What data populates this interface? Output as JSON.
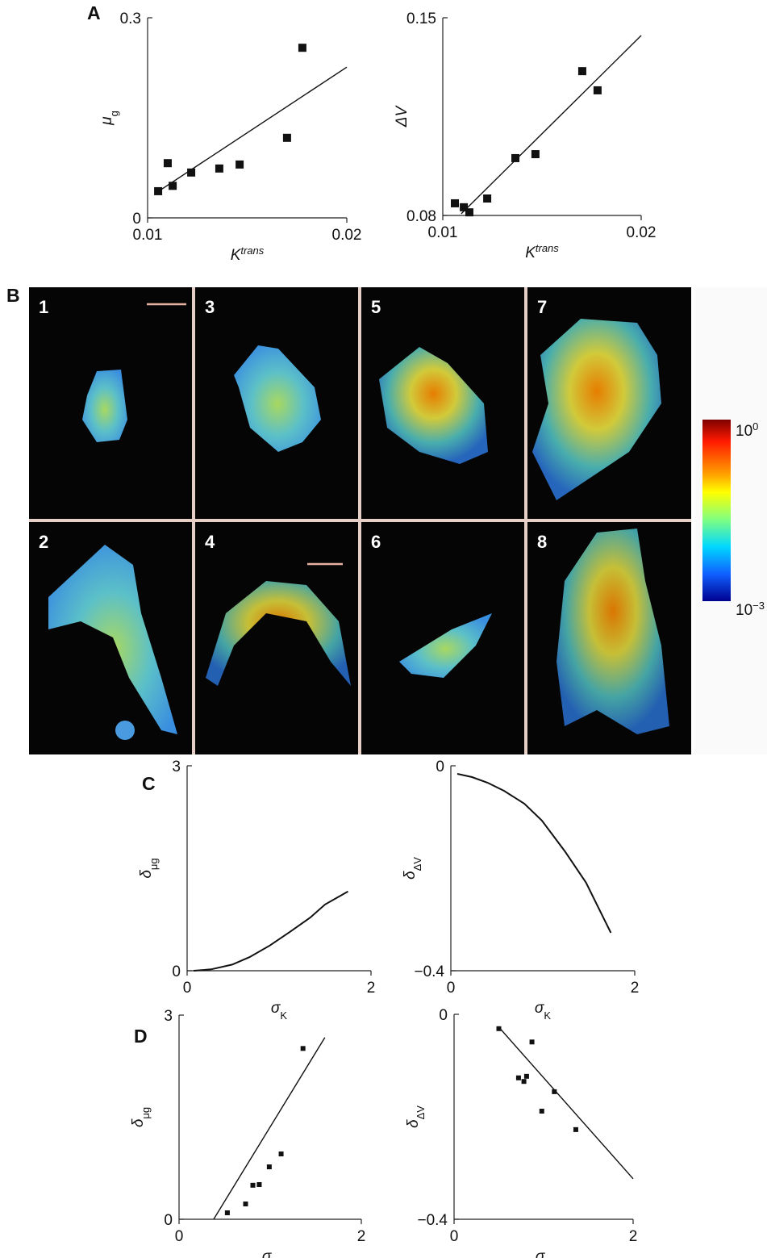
{
  "chart_data": [
    {
      "type": "scatter",
      "panel_label": "A",
      "x": [
        0.01053,
        0.01101,
        0.01126,
        0.01219,
        0.0136,
        0.01462,
        0.017,
        0.01777
      ],
      "values": [
        0.04,
        0.082,
        0.048,
        0.068,
        0.074,
        0.08,
        0.12,
        0.255
      ],
      "fit": {
        "x": [
          0.0105,
          0.02
        ],
        "values": [
          0.039,
          0.226
        ]
      },
      "xlim": [
        0.01,
        0.02
      ],
      "xticks": [
        0.01,
        0.02
      ],
      "ylim": [
        0,
        0.3
      ],
      "yticks": [
        0,
        0.3
      ],
      "xlabel": {
        "main": "K",
        "sup": "trans"
      },
      "ylabel": {
        "main": "μ",
        "sub": "g"
      },
      "color": "#111111"
    },
    {
      "type": "scatter",
      "x": [
        0.01061,
        0.01106,
        0.01134,
        0.01224,
        0.01366,
        0.01467,
        0.01703,
        0.0178
      ],
      "values": [
        0.0843,
        0.0829,
        0.0811,
        0.086,
        0.1003,
        0.1017,
        0.1311,
        0.1243
      ],
      "fit": {
        "x": [
          0.01093,
          0.02
        ],
        "values": [
          0.0806,
          0.1437
        ]
      },
      "xlim": [
        0.01,
        0.02
      ],
      "xticks": [
        0.01,
        0.02
      ],
      "ylim": [
        0.08,
        0.15
      ],
      "yticks": [
        0.08,
        0.15
      ],
      "xlabel": {
        "main": "K",
        "sup": "trans"
      },
      "ylabel": {
        "main": "ΔV"
      },
      "color": "#111111"
    },
    {
      "type": "line",
      "panel_label": "C",
      "x": [
        0.07,
        0.26,
        0.49,
        0.68,
        0.9,
        1.12,
        1.34,
        1.5,
        1.75
      ],
      "values": [
        0,
        0.02,
        0.09,
        0.2,
        0.37,
        0.57,
        0.78,
        0.97,
        1.16
      ],
      "xlim": [
        0,
        2
      ],
      "xticks": [
        0,
        2
      ],
      "ylim": [
        0,
        3
      ],
      "yticks": [
        0,
        3
      ],
      "xlabel": {
        "main": "σ",
        "sub": "K"
      },
      "ylabel": {
        "main": "δ",
        "sub": "μg"
      },
      "color": "#111111"
    },
    {
      "type": "line",
      "x": [
        0.07,
        0.23,
        0.4,
        0.58,
        0.8,
        0.99,
        1.24,
        1.47,
        1.74
      ],
      "values": [
        -0.0157,
        -0.022,
        -0.033,
        -0.049,
        -0.074,
        -0.107,
        -0.167,
        -0.228,
        -0.326
      ],
      "xlim": [
        0,
        2
      ],
      "xticks": [
        0,
        2
      ],
      "ylim": [
        -0.4,
        0
      ],
      "yticks": [
        {
          "value": -0.4,
          "label": "−0.4"
        },
        0
      ],
      "xlabel": {
        "main": "σ",
        "sub": "K"
      },
      "ylabel": {
        "main": "δ",
        "sub": "ΔV"
      },
      "color": "#111111"
    },
    {
      "type": "scatter",
      "panel_label": "D",
      "x": [
        0.53,
        0.73,
        0.81,
        0.88,
        0.99,
        1.12,
        1.36
      ],
      "values": [
        0.095,
        0.225,
        0.5,
        0.51,
        0.77,
        0.96,
        2.51
      ],
      "fit": {
        "x": [
          0.38,
          1.6
        ],
        "values": [
          0,
          2.67
        ]
      },
      "xlim": [
        0,
        2
      ],
      "xticks": [
        0,
        2
      ],
      "ylim": [
        0,
        3
      ],
      "yticks": [
        0,
        3
      ],
      "xlabel": {
        "main": "σ",
        "sub": "K"
      },
      "ylabel": {
        "main": "δ",
        "sub": "μg"
      },
      "color": "#111111"
    },
    {
      "type": "scatter",
      "x": [
        0.5,
        0.72,
        0.78,
        0.81,
        0.87,
        0.98,
        1.12,
        1.36
      ],
      "values": [
        -0.028,
        -0.124,
        -0.131,
        -0.121,
        -0.054,
        -0.189,
        -0.151,
        -0.225
      ],
      "fit": {
        "x": [
          0.5,
          2
        ],
        "values": [
          -0.025,
          -0.321
        ]
      },
      "xlim": [
        0,
        2
      ],
      "xticks": [
        0,
        2
      ],
      "ylim": [
        -0.4,
        0
      ],
      "yticks": [
        {
          "value": -0.4,
          "label": "−0.4"
        },
        0
      ],
      "xlabel": {
        "main": "σ",
        "sub": "K"
      },
      "ylabel": {
        "main": "δ",
        "sub": "ΔV"
      },
      "color": "#111111"
    }
  ],
  "panel_b": {
    "label": "B",
    "tiles": [
      "1",
      "2",
      "3",
      "4",
      "5",
      "6",
      "7",
      "8"
    ],
    "colorbar": {
      "top": {
        "base": "10",
        "exp": "0"
      },
      "bottom": {
        "base": "10",
        "exp": "−3"
      }
    }
  }
}
